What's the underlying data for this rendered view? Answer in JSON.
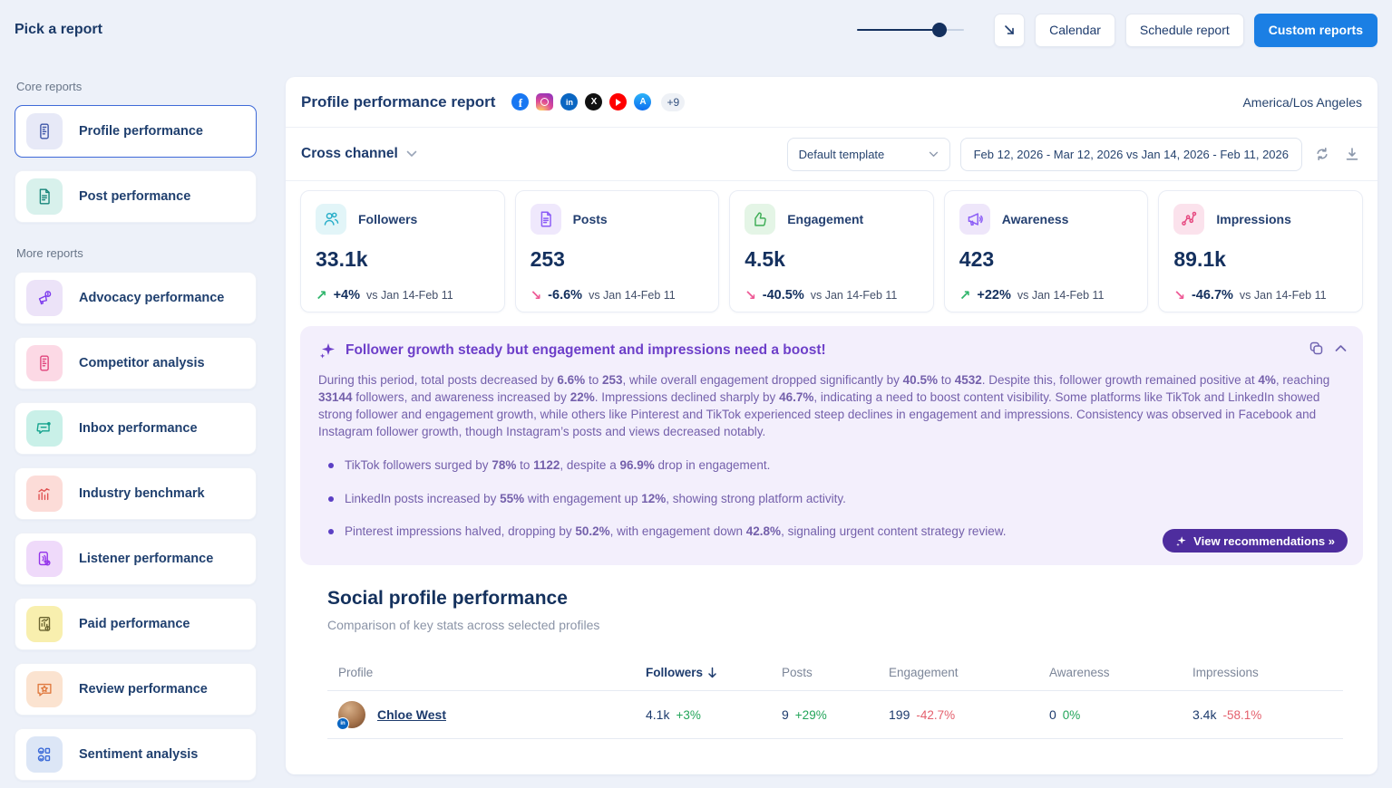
{
  "topbar": {
    "title": "Pick a report",
    "slider": {
      "value": 77
    },
    "calendar_label": "Calendar",
    "schedule_label": "Schedule report",
    "custom_label": "Custom reports"
  },
  "sidebar": {
    "core_label": "Core reports",
    "more_label": "More reports",
    "core_items": [
      {
        "label": "Profile performance",
        "icon": "mobile-report-icon",
        "selected": true
      },
      {
        "label": "Post performance",
        "icon": "post-document-icon",
        "selected": false
      }
    ],
    "more_items": [
      {
        "label": "Advocacy performance",
        "icon": "megaphone-dollar-icon"
      },
      {
        "label": "Competitor analysis",
        "icon": "competitor-mobile-icon"
      },
      {
        "label": "Inbox performance",
        "icon": "inbox-chat-icon"
      },
      {
        "label": "Industry benchmark",
        "icon": "benchmark-chart-icon"
      },
      {
        "label": "Listener performance",
        "icon": "listener-audio-icon"
      },
      {
        "label": "Paid performance",
        "icon": "paid-report-icon"
      },
      {
        "label": "Review performance",
        "icon": "review-star-icon"
      },
      {
        "label": "Sentiment analysis",
        "icon": "sentiment-smiley-icon"
      }
    ]
  },
  "report": {
    "title": "Profile performance report",
    "networks": [
      "facebook",
      "instagram",
      "linkedin",
      "x",
      "youtube",
      "app-store"
    ],
    "more_networks": "+9",
    "timezone": "America/Los Angeles",
    "channel_label": "Cross channel",
    "template_value": "Default template",
    "date_range": "Feb 12, 2026 - Mar 12, 2026 vs Jan 14, 2026 - Feb 11, 2026"
  },
  "stats": [
    {
      "label": "Followers",
      "value": "33.1k",
      "delta": "+4%",
      "direction": "up",
      "compare": "vs Jan 14-Feb 11"
    },
    {
      "label": "Posts",
      "value": "253",
      "delta": "-6.6%",
      "direction": "down",
      "compare": "vs Jan 14-Feb 11"
    },
    {
      "label": "Engagement",
      "value": "4.5k",
      "delta": "-40.5%",
      "direction": "down",
      "compare": "vs Jan 14-Feb 11"
    },
    {
      "label": "Awareness",
      "value": "423",
      "delta": "+22%",
      "direction": "up",
      "compare": "vs Jan 14-Feb 11"
    },
    {
      "label": "Impressions",
      "value": "89.1k",
      "delta": "-46.7%",
      "direction": "down",
      "compare": "vs Jan 14-Feb 11"
    }
  ],
  "insight": {
    "title": "Follower growth steady but engagement and impressions need a boost!",
    "paragraph": [
      {
        "t": "During this period, total posts decreased by "
      },
      {
        "t": "6.6%",
        "b": true
      },
      {
        "t": " to "
      },
      {
        "t": "253",
        "b": true
      },
      {
        "t": ", while overall engagement dropped significantly by "
      },
      {
        "t": "40.5%",
        "b": true
      },
      {
        "t": " to "
      },
      {
        "t": "4532",
        "b": true
      },
      {
        "t": ". Despite this, follower growth remained positive at "
      },
      {
        "t": "4%",
        "b": true
      },
      {
        "t": ", reaching "
      },
      {
        "t": "33144",
        "b": true
      },
      {
        "t": " followers, and awareness increased by "
      },
      {
        "t": "22%",
        "b": true
      },
      {
        "t": ". Impressions declined sharply by "
      },
      {
        "t": "46.7%",
        "b": true
      },
      {
        "t": ", indicating a need to boost content visibility. Some platforms like TikTok and LinkedIn showed strong follower and engagement growth, while others like Pinterest and TikTok experienced steep declines in engagement and impressions. Consistency was observed in Facebook and Instagram follower growth, though Instagram’s posts and views decreased notably."
      }
    ],
    "bullets": [
      [
        {
          "t": "TikTok followers surged by "
        },
        {
          "t": "78%",
          "b": true
        },
        {
          "t": " to "
        },
        {
          "t": "1122",
          "b": true
        },
        {
          "t": ", despite a "
        },
        {
          "t": "96.9%",
          "b": true
        },
        {
          "t": " drop in engagement."
        }
      ],
      [
        {
          "t": "LinkedIn posts increased by "
        },
        {
          "t": "55%",
          "b": true
        },
        {
          "t": " with engagement up "
        },
        {
          "t": "12%",
          "b": true
        },
        {
          "t": ", showing strong platform activity."
        }
      ],
      [
        {
          "t": "Pinterest impressions halved, dropping by "
        },
        {
          "t": "50.2%",
          "b": true
        },
        {
          "t": ", with engagement down "
        },
        {
          "t": "42.8%",
          "b": true
        },
        {
          "t": ", signaling urgent content strategy review."
        }
      ]
    ],
    "button_label": "View recommendations »"
  },
  "profiles_section": {
    "title": "Social profile performance",
    "subtitle": "Comparison of key stats across selected profiles",
    "columns": {
      "profile": "Profile",
      "followers": "Followers",
      "posts": "Posts",
      "engagement": "Engagement",
      "awareness": "Awareness",
      "impressions": "Impressions"
    },
    "sorted_by": "followers",
    "rows": [
      {
        "name": "Chloe West",
        "network": "linkedin",
        "followers_value": "4.1k",
        "followers_delta": "+3%",
        "followers_dir": "up",
        "posts_value": "9",
        "posts_delta": "+29%",
        "posts_dir": "up",
        "engagement_value": "199",
        "engagement_delta": "-42.7%",
        "engagement_dir": "down",
        "awareness_value": "0",
        "awareness_delta": "0%",
        "awareness_dir": "up",
        "impressions_value": "3.4k",
        "impressions_delta": "-58.1%",
        "impressions_dir": "down"
      }
    ]
  },
  "colors": {
    "accent_blue": "#1b7fe4",
    "navy": "#1d3b6d",
    "positive_green": "#23a55a",
    "negative_red": "#e4606d",
    "trend_down_pink": "#ee5a96",
    "insight_purple": "#6d3fc9",
    "recommendation_button_purple": "#4e2d9e"
  }
}
